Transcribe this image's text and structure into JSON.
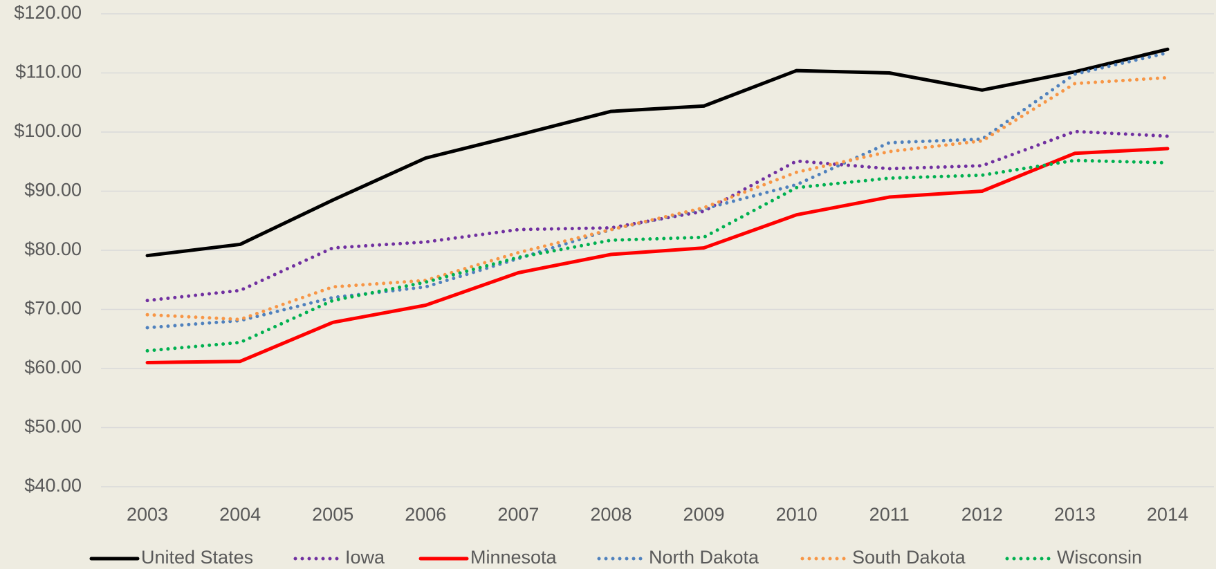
{
  "chart_data": {
    "type": "line",
    "categories": [
      "2003",
      "2004",
      "2005",
      "2006",
      "2007",
      "2008",
      "2009",
      "2010",
      "2011",
      "2012",
      "2013",
      "2014"
    ],
    "series": [
      {
        "name": "United States",
        "color": "#000000",
        "dashed": false,
        "values": [
          79.1,
          81,
          88.5,
          95.6,
          99.5,
          103.5,
          104.4,
          110.4,
          110,
          107.1,
          110.2,
          114
        ]
      },
      {
        "name": "Iowa",
        "color": "#7030a0",
        "dashed": true,
        "values": [
          71.5,
          73.2,
          80.4,
          81.4,
          83.5,
          83.8,
          86.6,
          95.1,
          93.8,
          94.3,
          100.1,
          99.3
        ]
      },
      {
        "name": "Minnesota",
        "color": "#ff0000",
        "dashed": false,
        "values": [
          61,
          61.2,
          67.8,
          70.7,
          76.2,
          79.3,
          80.4,
          86,
          89,
          90,
          96.4,
          97.2
        ]
      },
      {
        "name": "North Dakota",
        "color": "#4f81bd",
        "dashed": true,
        "values": [
          66.9,
          68.1,
          72,
          73.8,
          78.6,
          83.5,
          87,
          91.1,
          98.2,
          98.8,
          109.8,
          113.4
        ]
      },
      {
        "name": "South Dakota",
        "color": "#f79646",
        "dashed": true,
        "values": [
          69.1,
          68.3,
          73.8,
          74.9,
          79.6,
          83.5,
          87.2,
          93.2,
          96.7,
          98.5,
          108.2,
          109.2
        ]
      },
      {
        "name": "Wisconsin",
        "color": "#00b050",
        "dashed": true,
        "values": [
          63,
          64.4,
          71.5,
          74.6,
          78.8,
          81.7,
          82.2,
          90.6,
          92.2,
          92.7,
          95.2,
          94.8
        ]
      }
    ],
    "ylim": [
      40,
      120
    ],
    "yticks": [
      {
        "value": 40,
        "label": "$40.00"
      },
      {
        "value": 50,
        "label": "$50.00"
      },
      {
        "value": 60,
        "label": "$60.00"
      },
      {
        "value": 70,
        "label": "$70.00"
      },
      {
        "value": 80,
        "label": "$80.00"
      },
      {
        "value": 90,
        "label": "$90.00"
      },
      {
        "value": 100,
        "label": "$100.00"
      },
      {
        "value": 110,
        "label": "$110.00"
      },
      {
        "value": 120,
        "label": "$120.00"
      }
    ],
    "grid": true,
    "legend": "bottom"
  }
}
